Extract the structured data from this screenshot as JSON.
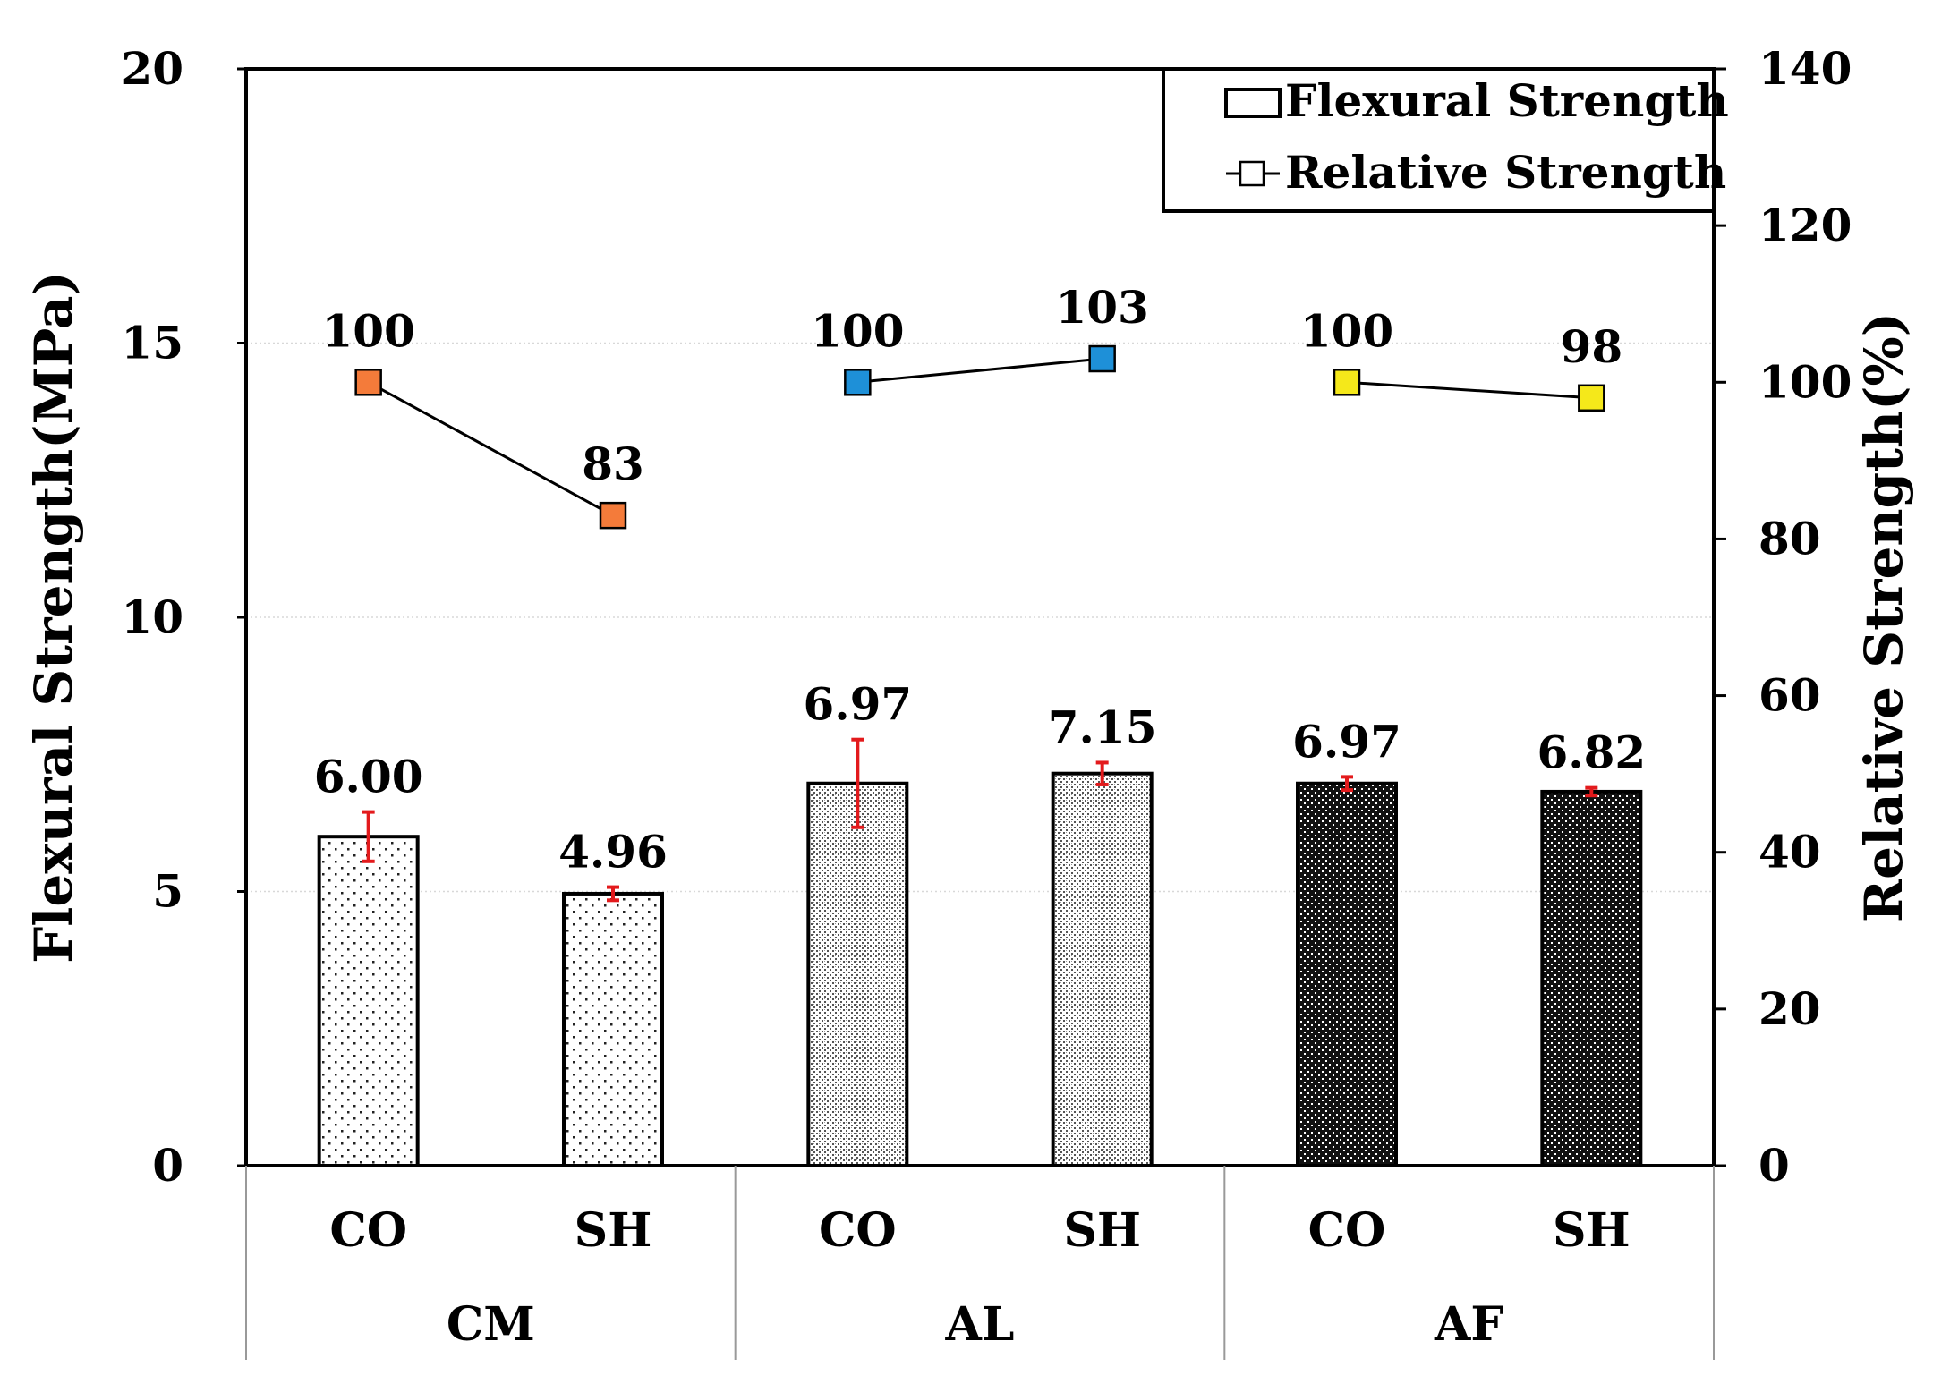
{
  "chart_data": {
    "type": "bar",
    "categories": [
      "CO",
      "SH",
      "CO",
      "SH",
      "CO",
      "SH"
    ],
    "groups": [
      "CM",
      "AL",
      "AF"
    ],
    "ylabel": "Flexural Strength(MPa)",
    "y2label": "Relative Strength(%)",
    "ylim": [
      0,
      20
    ],
    "y2lim": [
      0,
      140
    ],
    "yticks": [
      "0",
      "5",
      "10",
      "15",
      "20"
    ],
    "y2ticks": [
      "0",
      "20",
      "40",
      "60",
      "80",
      "100",
      "120",
      "140"
    ],
    "legend": {
      "position": "top-right",
      "bar": "Flexural Strength",
      "line": "Relative Strength"
    },
    "series": [
      {
        "name": "Flexural Strength",
        "type": "bar",
        "values": [
          6.0,
          4.96,
          6.97,
          7.15,
          6.97,
          6.82
        ],
        "labels": [
          "6.00",
          "4.96",
          "6.97",
          "7.15",
          "6.97",
          "6.82"
        ],
        "error": [
          0.45,
          0.12,
          0.8,
          0.2,
          0.12,
          0.07
        ],
        "patterns": [
          "sparse-dots",
          "sparse-dots",
          "fine-dots",
          "fine-dots",
          "dark-checker",
          "dark-checker"
        ]
      },
      {
        "name": "Relative Strength",
        "type": "line",
        "axis": "right",
        "values": [
          100,
          83,
          100,
          103,
          100,
          98
        ],
        "labels": [
          "100",
          "83",
          "100",
          "103",
          "100",
          "98"
        ],
        "marker_colors": [
          "#f47b3a",
          "#f47b3a",
          "#1e90d8",
          "#1e90d8",
          "#f5e81a",
          "#f5e81a"
        ]
      }
    ],
    "error_bar_color": "#e31a1c"
  }
}
